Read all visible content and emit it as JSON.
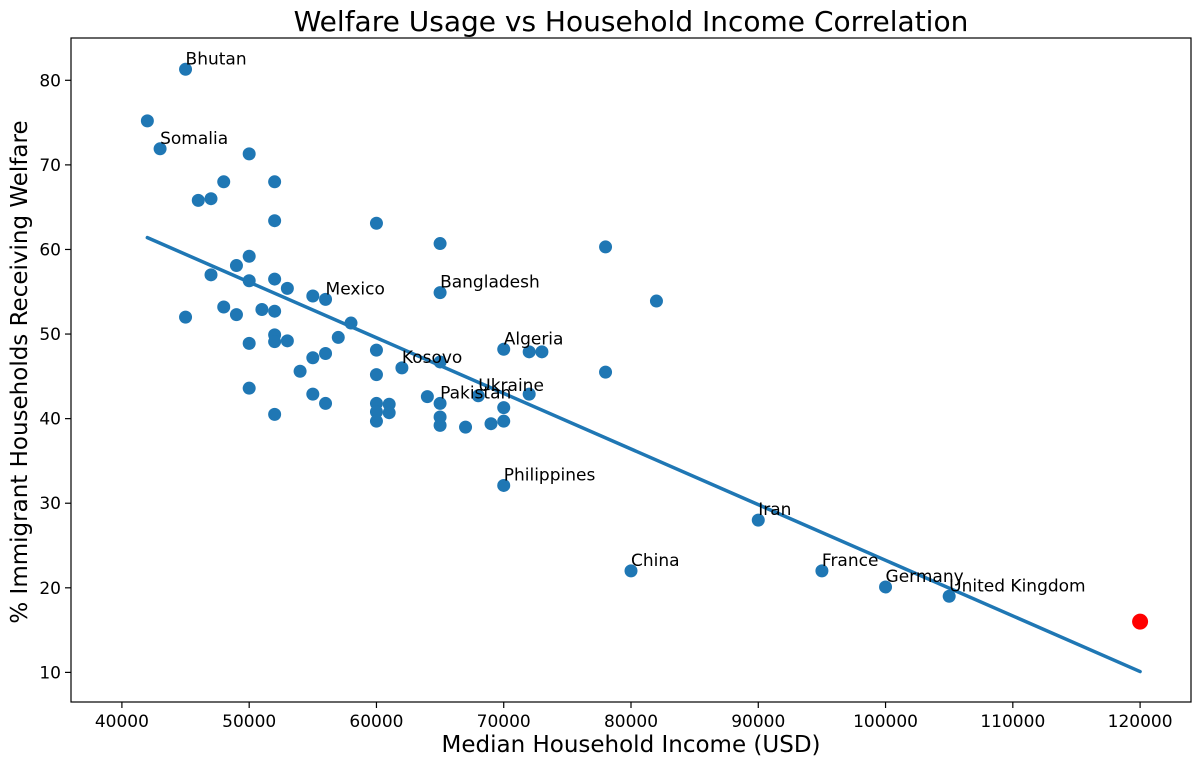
{
  "chart_data": {
    "type": "scatter",
    "title": "Welfare Usage vs Household Income Correlation",
    "xlabel": "Median Household Income (USD)",
    "ylabel": "% Immigrant Households Receiving Welfare",
    "xlim": [
      36000,
      124000
    ],
    "ylim": [
      6.5,
      85
    ],
    "xticks": [
      40000,
      50000,
      60000,
      70000,
      80000,
      90000,
      100000,
      110000,
      120000
    ],
    "yticks": [
      10,
      20,
      30,
      40,
      50,
      60,
      70,
      80
    ],
    "grid": false,
    "series_color": "#1f77b4",
    "highlight_color": "#ff0000",
    "points": [
      {
        "x": 45000,
        "y": 81.3,
        "label": "Bhutan"
      },
      {
        "x": 42000,
        "y": 75.2,
        "label": ""
      },
      {
        "x": 43000,
        "y": 71.9,
        "label": "Somalia"
      },
      {
        "x": 50000,
        "y": 71.3,
        "label": ""
      },
      {
        "x": 48000,
        "y": 68.0,
        "label": ""
      },
      {
        "x": 52000,
        "y": 68.0,
        "label": ""
      },
      {
        "x": 46000,
        "y": 65.8,
        "label": ""
      },
      {
        "x": 47000,
        "y": 66.0,
        "label": ""
      },
      {
        "x": 52000,
        "y": 63.4,
        "label": ""
      },
      {
        "x": 60000,
        "y": 63.1,
        "label": ""
      },
      {
        "x": 65000,
        "y": 60.7,
        "label": ""
      },
      {
        "x": 78000,
        "y": 60.3,
        "label": ""
      },
      {
        "x": 50000,
        "y": 59.2,
        "label": ""
      },
      {
        "x": 49000,
        "y": 58.1,
        "label": ""
      },
      {
        "x": 47000,
        "y": 57.0,
        "label": ""
      },
      {
        "x": 50000,
        "y": 56.3,
        "label": ""
      },
      {
        "x": 52000,
        "y": 56.5,
        "label": ""
      },
      {
        "x": 53000,
        "y": 55.4,
        "label": ""
      },
      {
        "x": 55000,
        "y": 54.5,
        "label": ""
      },
      {
        "x": 56000,
        "y": 54.1,
        "label": "Mexico"
      },
      {
        "x": 65000,
        "y": 54.9,
        "label": "Bangladesh"
      },
      {
        "x": 82000,
        "y": 53.9,
        "label": ""
      },
      {
        "x": 48000,
        "y": 53.2,
        "label": ""
      },
      {
        "x": 51000,
        "y": 52.9,
        "label": ""
      },
      {
        "x": 52000,
        "y": 52.7,
        "label": ""
      },
      {
        "x": 49000,
        "y": 52.3,
        "label": ""
      },
      {
        "x": 45000,
        "y": 52.0,
        "label": ""
      },
      {
        "x": 58000,
        "y": 51.3,
        "label": ""
      },
      {
        "x": 52000,
        "y": 49.9,
        "label": ""
      },
      {
        "x": 57000,
        "y": 49.6,
        "label": ""
      },
      {
        "x": 52000,
        "y": 49.1,
        "label": ""
      },
      {
        "x": 53000,
        "y": 49.2,
        "label": ""
      },
      {
        "x": 50000,
        "y": 48.9,
        "label": ""
      },
      {
        "x": 60000,
        "y": 48.1,
        "label": ""
      },
      {
        "x": 70000,
        "y": 48.2,
        "label": "Algeria"
      },
      {
        "x": 72000,
        "y": 47.9,
        "label": ""
      },
      {
        "x": 73000,
        "y": 47.9,
        "label": ""
      },
      {
        "x": 56000,
        "y": 47.7,
        "label": ""
      },
      {
        "x": 55000,
        "y": 47.2,
        "label": ""
      },
      {
        "x": 65000,
        "y": 46.7,
        "label": ""
      },
      {
        "x": 62000,
        "y": 46.0,
        "label": "Kosovo"
      },
      {
        "x": 54000,
        "y": 45.6,
        "label": ""
      },
      {
        "x": 60000,
        "y": 45.2,
        "label": ""
      },
      {
        "x": 78000,
        "y": 45.5,
        "label": ""
      },
      {
        "x": 50000,
        "y": 43.6,
        "label": ""
      },
      {
        "x": 55000,
        "y": 42.9,
        "label": ""
      },
      {
        "x": 64000,
        "y": 42.6,
        "label": ""
      },
      {
        "x": 68000,
        "y": 42.7,
        "label": "Ukraine"
      },
      {
        "x": 72000,
        "y": 42.9,
        "label": ""
      },
      {
        "x": 56000,
        "y": 41.8,
        "label": ""
      },
      {
        "x": 60000,
        "y": 41.8,
        "label": ""
      },
      {
        "x": 61000,
        "y": 41.7,
        "label": ""
      },
      {
        "x": 65000,
        "y": 41.8,
        "label": "Pakistan"
      },
      {
        "x": 70000,
        "y": 41.3,
        "label": ""
      },
      {
        "x": 60000,
        "y": 40.8,
        "label": ""
      },
      {
        "x": 61000,
        "y": 40.7,
        "label": ""
      },
      {
        "x": 52000,
        "y": 40.5,
        "label": ""
      },
      {
        "x": 65000,
        "y": 40.2,
        "label": ""
      },
      {
        "x": 60000,
        "y": 39.7,
        "label": ""
      },
      {
        "x": 70000,
        "y": 39.7,
        "label": ""
      },
      {
        "x": 69000,
        "y": 39.4,
        "label": ""
      },
      {
        "x": 65000,
        "y": 39.2,
        "label": ""
      },
      {
        "x": 67000,
        "y": 39.0,
        "label": ""
      },
      {
        "x": 70000,
        "y": 32.1,
        "label": "Philippines"
      },
      {
        "x": 90000,
        "y": 28.0,
        "label": "Iran"
      },
      {
        "x": 80000,
        "y": 22.0,
        "label": "China"
      },
      {
        "x": 95000,
        "y": 22.0,
        "label": "France"
      },
      {
        "x": 100000,
        "y": 20.1,
        "label": "Germany"
      },
      {
        "x": 105000,
        "y": 19.0,
        "label": "United Kingdom"
      }
    ],
    "highlight_point": {
      "x": 120000,
      "y": 16.0
    },
    "trend_line": {
      "x": [
        42000,
        120000
      ],
      "y": [
        61.4,
        10.1
      ]
    }
  }
}
